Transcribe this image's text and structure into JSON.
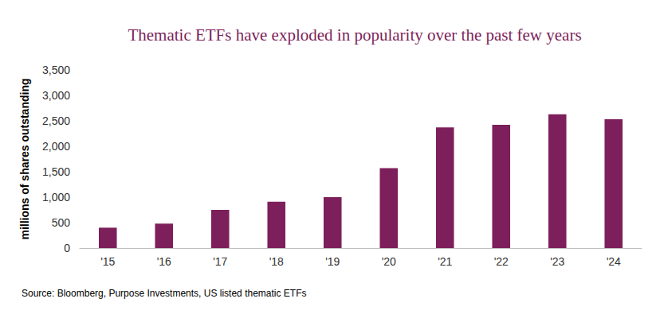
{
  "chart_data": {
    "type": "bar",
    "title": "Thematic ETFs have exploded in popularity over the past few years",
    "y_label": "millions of shares outstanding",
    "source": "Source: Bloomberg, Purpose Investments, US listed thematic ETFs",
    "categories": [
      "'15",
      "'16",
      "'17",
      "'18",
      "'19",
      "'20",
      "'21",
      "'22",
      "'23",
      "'24"
    ],
    "values": [
      400,
      480,
      750,
      910,
      1000,
      1570,
      2370,
      2420,
      2630,
      2530
    ],
    "color": "#7d1f5a",
    "ylim": [
      0,
      3500
    ],
    "yticks": [
      0,
      500,
      {
        "value": 1000,
        "label": "1,000"
      },
      {
        "value": 1500,
        "label": "1,500"
      },
      {
        "value": 2000,
        "label": "2,000"
      },
      {
        "value": 2500,
        "label": "2,500"
      },
      {
        "value": 3000,
        "label": "3,000"
      },
      {
        "value": 3500,
        "label": "3,500"
      }
    ],
    "grid": false
  }
}
